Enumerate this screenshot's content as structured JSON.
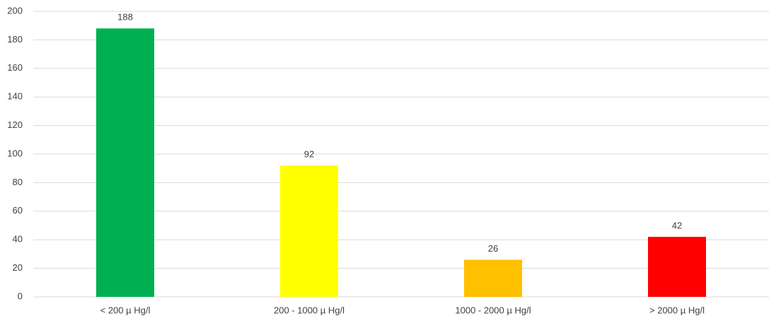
{
  "chart_data": {
    "type": "bar",
    "categories": [
      "< 200 µ Hg/l",
      "200 - 1000 µ Hg/l",
      "1000 - 2000 µ Hg/l",
      "> 2000 µ Hg/l"
    ],
    "values": [
      188,
      92,
      26,
      42
    ],
    "colors": [
      "#00b050",
      "#ffff00",
      "#ffc000",
      "#ff0000"
    ],
    "ylim": [
      0,
      200
    ],
    "yticks": [
      0,
      20,
      40,
      60,
      80,
      100,
      120,
      140,
      160,
      180,
      200
    ],
    "grid": true
  }
}
